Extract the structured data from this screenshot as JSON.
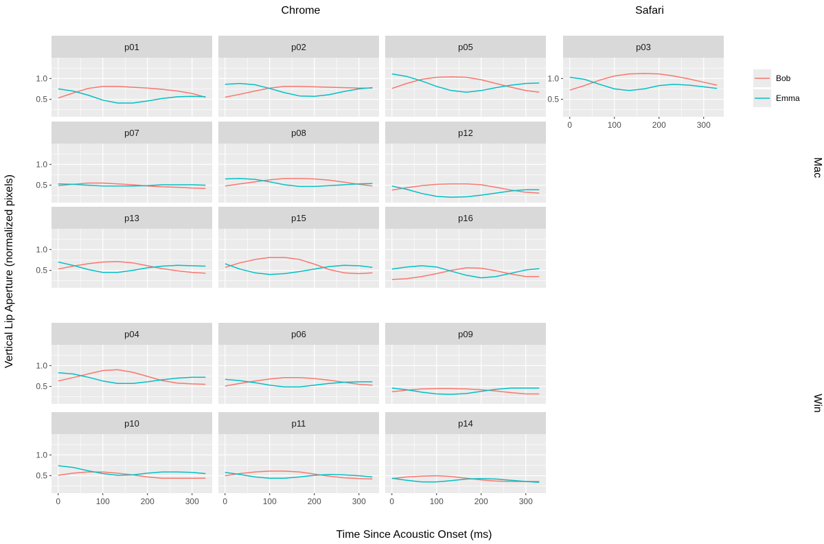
{
  "chart_data": {
    "type": "line",
    "xlabel": "Time Since Acoustic Onset (ms)",
    "ylabel": "Vertical Lip Aperture (normalized pixels)",
    "column_groups": [
      "Chrome",
      "Safari"
    ],
    "row_groups": [
      "Mac",
      "Win"
    ],
    "x": [
      0,
      33,
      67,
      100,
      133,
      167,
      200,
      233,
      267,
      300,
      330
    ],
    "xlim": [
      -15,
      345
    ],
    "ylim": [
      0.08,
      1.5
    ],
    "x_ticks": [
      0,
      100,
      200,
      300
    ],
    "x_tick_labels": [
      "0",
      "100",
      "200",
      "300"
    ],
    "y_ticks": [
      0.5,
      1.0
    ],
    "y_tick_labels": [
      "0.5",
      "1.0"
    ],
    "legend": {
      "position": "right",
      "entries": [
        {
          "name": "Bob",
          "color": "#F8766D"
        },
        {
          "name": "Emma",
          "color": "#00BFC4"
        }
      ]
    },
    "panels": [
      {
        "id": "p01",
        "browser": "Chrome",
        "os": "Mac",
        "series": [
          {
            "name": "Bob",
            "values": [
              0.53,
              0.65,
              0.76,
              0.81,
              0.81,
              0.79,
              0.77,
              0.74,
              0.7,
              0.64,
              0.55
            ]
          },
          {
            "name": "Emma",
            "values": [
              0.75,
              0.7,
              0.6,
              0.48,
              0.41,
              0.41,
              0.46,
              0.52,
              0.56,
              0.57,
              0.56
            ]
          }
        ]
      },
      {
        "id": "p02",
        "browser": "Chrome",
        "os": "Mac",
        "series": [
          {
            "name": "Bob",
            "values": [
              0.55,
              0.62,
              0.7,
              0.77,
              0.81,
              0.81,
              0.8,
              0.79,
              0.78,
              0.77,
              0.77
            ]
          },
          {
            "name": "Emma",
            "values": [
              0.86,
              0.88,
              0.85,
              0.76,
              0.66,
              0.58,
              0.57,
              0.61,
              0.69,
              0.75,
              0.78
            ]
          }
        ]
      },
      {
        "id": "p05",
        "browser": "Chrome",
        "os": "Mac",
        "series": [
          {
            "name": "Bob",
            "values": [
              0.76,
              0.88,
              0.98,
              1.03,
              1.04,
              1.03,
              0.97,
              0.88,
              0.79,
              0.71,
              0.67
            ]
          },
          {
            "name": "Emma",
            "values": [
              1.11,
              1.05,
              0.94,
              0.81,
              0.71,
              0.67,
              0.71,
              0.78,
              0.84,
              0.88,
              0.89
            ]
          }
        ]
      },
      {
        "id": "p03",
        "browser": "Safari",
        "os": "Mac",
        "series": [
          {
            "name": "Bob",
            "values": [
              0.72,
              0.83,
              0.96,
              1.06,
              1.11,
              1.12,
              1.11,
              1.06,
              0.99,
              0.91,
              0.84
            ]
          },
          {
            "name": "Emma",
            "values": [
              1.03,
              0.98,
              0.86,
              0.75,
              0.71,
              0.75,
              0.83,
              0.86,
              0.84,
              0.8,
              0.76
            ]
          }
        ]
      },
      {
        "id": "p07",
        "browser": "Chrome",
        "os": "Mac",
        "series": [
          {
            "name": "Bob",
            "values": [
              0.49,
              0.52,
              0.55,
              0.55,
              0.53,
              0.51,
              0.48,
              0.46,
              0.45,
              0.43,
              0.42
            ]
          },
          {
            "name": "Emma",
            "values": [
              0.53,
              0.52,
              0.5,
              0.48,
              0.48,
              0.48,
              0.49,
              0.51,
              0.51,
              0.51,
              0.5
            ]
          }
        ]
      },
      {
        "id": "p08",
        "browser": "Chrome",
        "os": "Mac",
        "series": [
          {
            "name": "Bob",
            "values": [
              0.48,
              0.53,
              0.58,
              0.63,
              0.66,
              0.66,
              0.65,
              0.62,
              0.57,
              0.52,
              0.48
            ]
          },
          {
            "name": "Emma",
            "values": [
              0.65,
              0.66,
              0.64,
              0.58,
              0.51,
              0.47,
              0.47,
              0.49,
              0.51,
              0.53,
              0.54
            ]
          }
        ]
      },
      {
        "id": "p12",
        "browser": "Chrome",
        "os": "Mac",
        "series": [
          {
            "name": "Bob",
            "values": [
              0.38,
              0.44,
              0.49,
              0.52,
              0.53,
              0.53,
              0.51,
              0.45,
              0.38,
              0.33,
              0.31
            ]
          },
          {
            "name": "Emma",
            "values": [
              0.48,
              0.4,
              0.3,
              0.23,
              0.21,
              0.22,
              0.26,
              0.31,
              0.36,
              0.39,
              0.39
            ]
          }
        ]
      },
      {
        "id": "p13",
        "browser": "Chrome",
        "os": "Mac",
        "series": [
          {
            "name": "Bob",
            "values": [
              0.53,
              0.6,
              0.66,
              0.7,
              0.71,
              0.68,
              0.61,
              0.54,
              0.49,
              0.45,
              0.43
            ]
          },
          {
            "name": "Emma",
            "values": [
              0.7,
              0.62,
              0.52,
              0.45,
              0.45,
              0.5,
              0.56,
              0.6,
              0.62,
              0.61,
              0.6
            ]
          }
        ]
      },
      {
        "id": "p15",
        "browser": "Chrome",
        "os": "Mac",
        "series": [
          {
            "name": "Bob",
            "values": [
              0.57,
              0.68,
              0.76,
              0.81,
              0.81,
              0.76,
              0.65,
              0.52,
              0.44,
              0.42,
              0.44
            ]
          },
          {
            "name": "Emma",
            "values": [
              0.66,
              0.53,
              0.44,
              0.4,
              0.42,
              0.47,
              0.53,
              0.59,
              0.62,
              0.61,
              0.57
            ]
          }
        ]
      },
      {
        "id": "p16",
        "browser": "Chrome",
        "os": "Mac",
        "series": [
          {
            "name": "Bob",
            "values": [
              0.28,
              0.3,
              0.35,
              0.42,
              0.5,
              0.56,
              0.55,
              0.49,
              0.41,
              0.35,
              0.35
            ]
          },
          {
            "name": "Emma",
            "values": [
              0.53,
              0.58,
              0.61,
              0.58,
              0.48,
              0.38,
              0.32,
              0.35,
              0.43,
              0.51,
              0.54
            ]
          }
        ]
      },
      {
        "id": "p04",
        "browser": "Chrome",
        "os": "Win",
        "series": [
          {
            "name": "Bob",
            "values": [
              0.63,
              0.71,
              0.8,
              0.88,
              0.9,
              0.84,
              0.74,
              0.64,
              0.58,
              0.56,
              0.55
            ]
          },
          {
            "name": "Emma",
            "values": [
              0.83,
              0.8,
              0.72,
              0.63,
              0.57,
              0.57,
              0.61,
              0.66,
              0.7,
              0.72,
              0.72
            ]
          }
        ]
      },
      {
        "id": "p06",
        "browser": "Chrome",
        "os": "Win",
        "series": [
          {
            "name": "Bob",
            "values": [
              0.51,
              0.57,
              0.63,
              0.68,
              0.71,
              0.71,
              0.69,
              0.65,
              0.6,
              0.55,
              0.53
            ]
          },
          {
            "name": "Emma",
            "values": [
              0.67,
              0.64,
              0.59,
              0.53,
              0.49,
              0.49,
              0.53,
              0.57,
              0.6,
              0.61,
              0.61
            ]
          }
        ]
      },
      {
        "id": "p09",
        "browser": "Chrome",
        "os": "Win",
        "series": [
          {
            "name": "Bob",
            "values": [
              0.37,
              0.41,
              0.44,
              0.45,
              0.45,
              0.44,
              0.42,
              0.39,
              0.35,
              0.32,
              0.32
            ]
          },
          {
            "name": "Emma",
            "values": [
              0.46,
              0.42,
              0.36,
              0.32,
              0.31,
              0.33,
              0.38,
              0.43,
              0.46,
              0.46,
              0.46
            ]
          }
        ]
      },
      {
        "id": "p10",
        "browser": "Chrome",
        "os": "Win",
        "series": [
          {
            "name": "Bob",
            "values": [
              0.51,
              0.56,
              0.59,
              0.59,
              0.56,
              0.52,
              0.47,
              0.44,
              0.44,
              0.44,
              0.44
            ]
          },
          {
            "name": "Emma",
            "values": [
              0.74,
              0.7,
              0.62,
              0.55,
              0.51,
              0.52,
              0.56,
              0.59,
              0.59,
              0.58,
              0.55
            ]
          }
        ]
      },
      {
        "id": "p11",
        "browser": "Chrome",
        "os": "Win",
        "series": [
          {
            "name": "Bob",
            "values": [
              0.5,
              0.55,
              0.59,
              0.61,
              0.61,
              0.59,
              0.54,
              0.49,
              0.45,
              0.43,
              0.42
            ]
          },
          {
            "name": "Emma",
            "values": [
              0.58,
              0.53,
              0.47,
              0.44,
              0.44,
              0.47,
              0.51,
              0.53,
              0.52,
              0.5,
              0.47
            ]
          }
        ]
      },
      {
        "id": "p14",
        "browser": "Chrome",
        "os": "Win",
        "series": [
          {
            "name": "Bob",
            "values": [
              0.43,
              0.47,
              0.49,
              0.5,
              0.48,
              0.44,
              0.4,
              0.37,
              0.36,
              0.36,
              0.36
            ]
          },
          {
            "name": "Emma",
            "values": [
              0.44,
              0.39,
              0.35,
              0.35,
              0.38,
              0.42,
              0.43,
              0.42,
              0.39,
              0.36,
              0.34
            ]
          }
        ]
      }
    ]
  }
}
